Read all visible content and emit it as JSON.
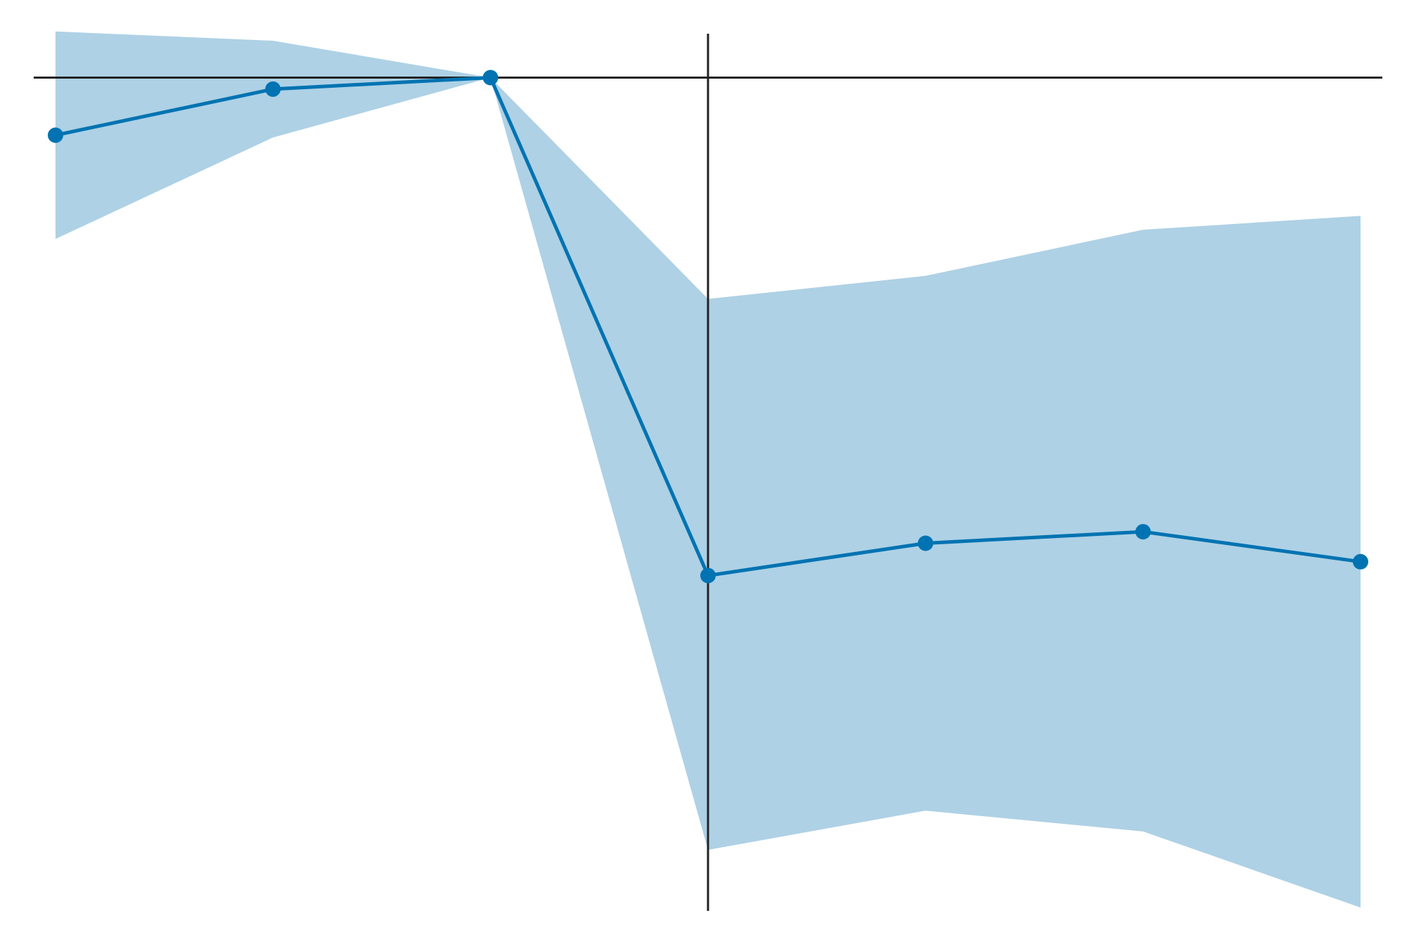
{
  "chart_data": {
    "type": "line",
    "x": [
      -3,
      -2,
      -1,
      0,
      1,
      2,
      3
    ],
    "series": [
      {
        "values": [
          -0.125,
          -0.025,
          0.0,
          -1.08,
          -1.01,
          -0.985,
          -1.05
        ],
        "ci_upper": [
          0.1,
          0.08,
          0.0,
          -0.48,
          -0.43,
          -0.33,
          -0.3
        ],
        "ci_lower": [
          -0.35,
          -0.13,
          0.0,
          -1.675,
          -1.59,
          -1.635,
          -1.8
        ],
        "color": "#0173b2",
        "band_color": "#aed1e5"
      }
    ],
    "reference_lines": {
      "horizontal_y": 0,
      "vertical_x": 0,
      "color": "#222222"
    },
    "xlim": [
      -3.1,
      3.1
    ],
    "ylim": [
      -1.85,
      0.15
    ],
    "grid": false,
    "legend": "none"
  }
}
